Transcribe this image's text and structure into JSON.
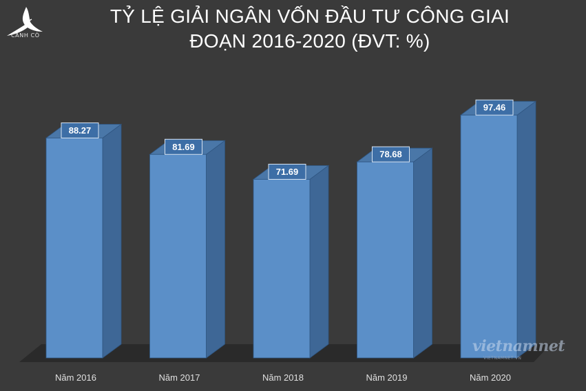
{
  "title_lines": [
    "TỶ LỆ GIẢI NGÂN VỐN ĐẦU TƯ CÔNG GIAI",
    "ĐOẠN 2016-2020 (ĐVT: %)"
  ],
  "logo": {
    "text": "CÁNH CÒ",
    "icon": "crane-bird-icon"
  },
  "watermark": {
    "text": "vietnamnet",
    "subtext": "VIETNAMNET.VN"
  },
  "colors": {
    "background": "#3a3a3a",
    "bar_front": "#5b8fc8",
    "bar_side": "#3e6796",
    "bar_top": "#4a77a8",
    "floor": "#2a2a2a",
    "label_box": "#3d6ea6"
  },
  "chart_data": {
    "type": "bar",
    "title": "TỶ LỆ GIẢI NGÂN VỐN ĐẦU TƯ CÔNG GIAI ĐOẠN 2016-2020 (ĐVT: %)",
    "categories": [
      "Năm 2016",
      "Năm 2017",
      "Năm 2018",
      "Năm 2019",
      "Năm 2020"
    ],
    "values": [
      88.27,
      81.69,
      71.69,
      78.68,
      97.46
    ],
    "value_labels": [
      "88.27",
      "81.69",
      "71.69",
      "78.68",
      "97.46"
    ],
    "xlabel": "",
    "ylabel": "",
    "grid": false,
    "legend": "none",
    "style": "3d-column"
  }
}
